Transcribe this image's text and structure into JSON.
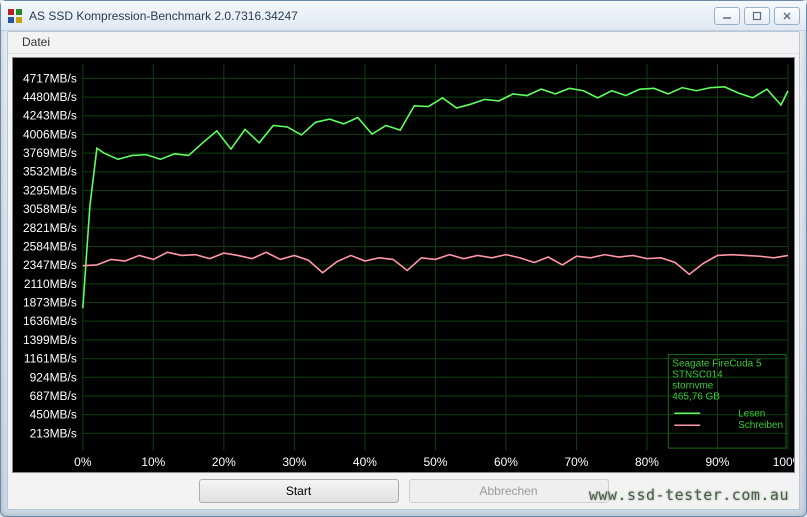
{
  "window": {
    "title": "AS SSD Kompression-Benchmark 2.0.7316.34247",
    "icon_colors": [
      "#b22222",
      "#228b22",
      "#2255aa",
      "#cca000"
    ]
  },
  "menu": {
    "file_label": "Datei"
  },
  "buttons": {
    "start_label": "Start",
    "cancel_label": "Abbrechen"
  },
  "watermark": "www.ssd-tester.com.au",
  "legend": {
    "device_lines": [
      "Seagate FireCuda 5",
      "STNSC014",
      "stornvme",
      "465,76 GB"
    ],
    "read_label": "Lesen",
    "write_label": "Schreiben",
    "text_color": "#33cc33",
    "border_color": "#1a6b1a",
    "read_color": "#5fff5f",
    "write_color": "#ff97a6"
  },
  "chart": {
    "bg": "#000000",
    "grid_color": "#0f3f0f",
    "axis_text_color": "#ffffff",
    "yaxis_unit": "MB/s",
    "y_ticks": [
      213,
      450,
      687,
      924,
      1161,
      1399,
      1636,
      1873,
      2110,
      2347,
      2584,
      2821,
      3058,
      3295,
      3532,
      3769,
      4006,
      4243,
      4480,
      4717
    ],
    "x_ticks": [
      0,
      10,
      20,
      30,
      40,
      50,
      60,
      70,
      80,
      90,
      100
    ],
    "y_min": 0,
    "y_max": 4900,
    "read": {
      "color": "#5fff5f",
      "points": [
        [
          0,
          1800
        ],
        [
          1,
          3100
        ],
        [
          2,
          3830
        ],
        [
          3,
          3770
        ],
        [
          5,
          3690
        ],
        [
          7,
          3740
        ],
        [
          9,
          3750
        ],
        [
          11,
          3690
        ],
        [
          13,
          3760
        ],
        [
          15,
          3740
        ],
        [
          17,
          3900
        ],
        [
          19,
          4050
        ],
        [
          21,
          3820
        ],
        [
          23,
          4070
        ],
        [
          25,
          3900
        ],
        [
          27,
          4120
        ],
        [
          29,
          4100
        ],
        [
          31,
          4000
        ],
        [
          33,
          4160
        ],
        [
          35,
          4200
        ],
        [
          37,
          4140
        ],
        [
          39,
          4220
        ],
        [
          41,
          4010
        ],
        [
          43,
          4120
        ],
        [
          45,
          4060
        ],
        [
          47,
          4370
        ],
        [
          49,
          4360
        ],
        [
          51,
          4470
        ],
        [
          53,
          4340
        ],
        [
          55,
          4390
        ],
        [
          57,
          4450
        ],
        [
          59,
          4430
        ],
        [
          61,
          4520
        ],
        [
          63,
          4500
        ],
        [
          65,
          4580
        ],
        [
          67,
          4520
        ],
        [
          69,
          4590
        ],
        [
          71,
          4560
        ],
        [
          73,
          4470
        ],
        [
          75,
          4560
        ],
        [
          77,
          4500
        ],
        [
          79,
          4580
        ],
        [
          81,
          4590
        ],
        [
          83,
          4520
        ],
        [
          85,
          4600
        ],
        [
          87,
          4560
        ],
        [
          89,
          4600
        ],
        [
          91,
          4610
        ],
        [
          93,
          4530
        ],
        [
          95,
          4470
        ],
        [
          97,
          4580
        ],
        [
          99,
          4380
        ],
        [
          100,
          4560
        ]
      ]
    },
    "write": {
      "color": "#ff97a6",
      "points": [
        [
          0,
          2340
        ],
        [
          2,
          2350
        ],
        [
          4,
          2420
        ],
        [
          6,
          2400
        ],
        [
          8,
          2470
        ],
        [
          10,
          2420
        ],
        [
          12,
          2510
        ],
        [
          14,
          2470
        ],
        [
          16,
          2480
        ],
        [
          18,
          2430
        ],
        [
          20,
          2500
        ],
        [
          22,
          2470
        ],
        [
          24,
          2430
        ],
        [
          26,
          2510
        ],
        [
          28,
          2420
        ],
        [
          30,
          2470
        ],
        [
          32,
          2410
        ],
        [
          34,
          2250
        ],
        [
          36,
          2390
        ],
        [
          38,
          2470
        ],
        [
          40,
          2400
        ],
        [
          42,
          2440
        ],
        [
          44,
          2420
        ],
        [
          46,
          2280
        ],
        [
          48,
          2440
        ],
        [
          50,
          2420
        ],
        [
          52,
          2480
        ],
        [
          54,
          2430
        ],
        [
          56,
          2470
        ],
        [
          58,
          2440
        ],
        [
          60,
          2480
        ],
        [
          62,
          2440
        ],
        [
          64,
          2380
        ],
        [
          66,
          2450
        ],
        [
          68,
          2350
        ],
        [
          70,
          2460
        ],
        [
          72,
          2440
        ],
        [
          74,
          2480
        ],
        [
          76,
          2450
        ],
        [
          78,
          2470
        ],
        [
          80,
          2430
        ],
        [
          82,
          2440
        ],
        [
          84,
          2380
        ],
        [
          86,
          2230
        ],
        [
          88,
          2370
        ],
        [
          90,
          2470
        ],
        [
          92,
          2480
        ],
        [
          94,
          2470
        ],
        [
          96,
          2460
        ],
        [
          98,
          2440
        ],
        [
          100,
          2470
        ]
      ]
    }
  }
}
